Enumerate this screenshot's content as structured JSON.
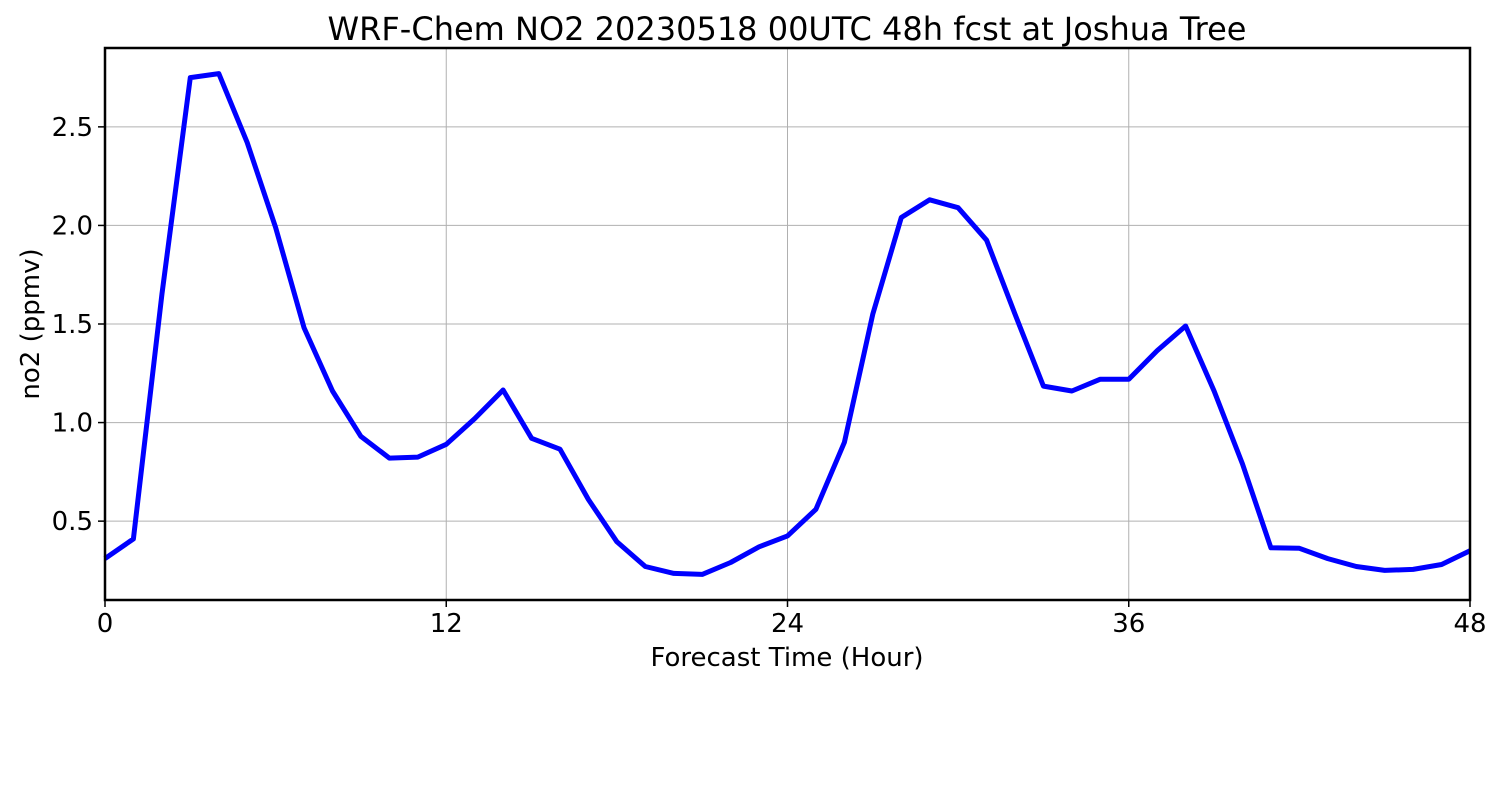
{
  "chart_data": {
    "type": "line",
    "title": "WRF-Chem NO2  20230518 00UTC 48h fcst at Joshua Tree",
    "xlabel": "Forecast Time (Hour)",
    "ylabel": "no2  (ppmv)",
    "xlim": [
      0,
      48
    ],
    "ylim": [
      0.1,
      2.9
    ],
    "xticks": [
      0,
      12,
      24,
      36,
      48
    ],
    "yticks": [
      0.5,
      1.0,
      1.5,
      2.0,
      2.5
    ],
    "ytick_labels": [
      "0.5",
      "1.0",
      "1.5",
      "2.0",
      "2.5"
    ],
    "grid": true,
    "series": [
      {
        "color": "#0000ff",
        "x": [
          0,
          1,
          2,
          3,
          4,
          5,
          6,
          7,
          8,
          9,
          10,
          11,
          12,
          13,
          14,
          15,
          16,
          17,
          18,
          19,
          20,
          21,
          22,
          23,
          24,
          25,
          26,
          27,
          28,
          29,
          30,
          31,
          32,
          33,
          34,
          35,
          36,
          37,
          38,
          39,
          40,
          41,
          42,
          43,
          44,
          45,
          46,
          47,
          48
        ],
        "y": [
          0.31,
          0.41,
          1.65,
          2.75,
          2.77,
          2.42,
          1.99,
          1.48,
          1.16,
          0.93,
          0.82,
          0.825,
          0.89,
          1.02,
          1.165,
          0.92,
          0.865,
          0.61,
          0.395,
          0.27,
          0.235,
          0.23,
          0.29,
          0.37,
          0.425,
          0.56,
          0.9,
          1.55,
          2.04,
          2.13,
          2.09,
          1.925,
          1.55,
          1.185,
          1.16,
          1.22,
          1.22,
          1.365,
          1.49,
          1.16,
          0.79,
          0.365,
          0.362,
          0.31,
          0.27,
          0.25,
          0.255,
          0.28,
          0.35
        ]
      }
    ]
  }
}
